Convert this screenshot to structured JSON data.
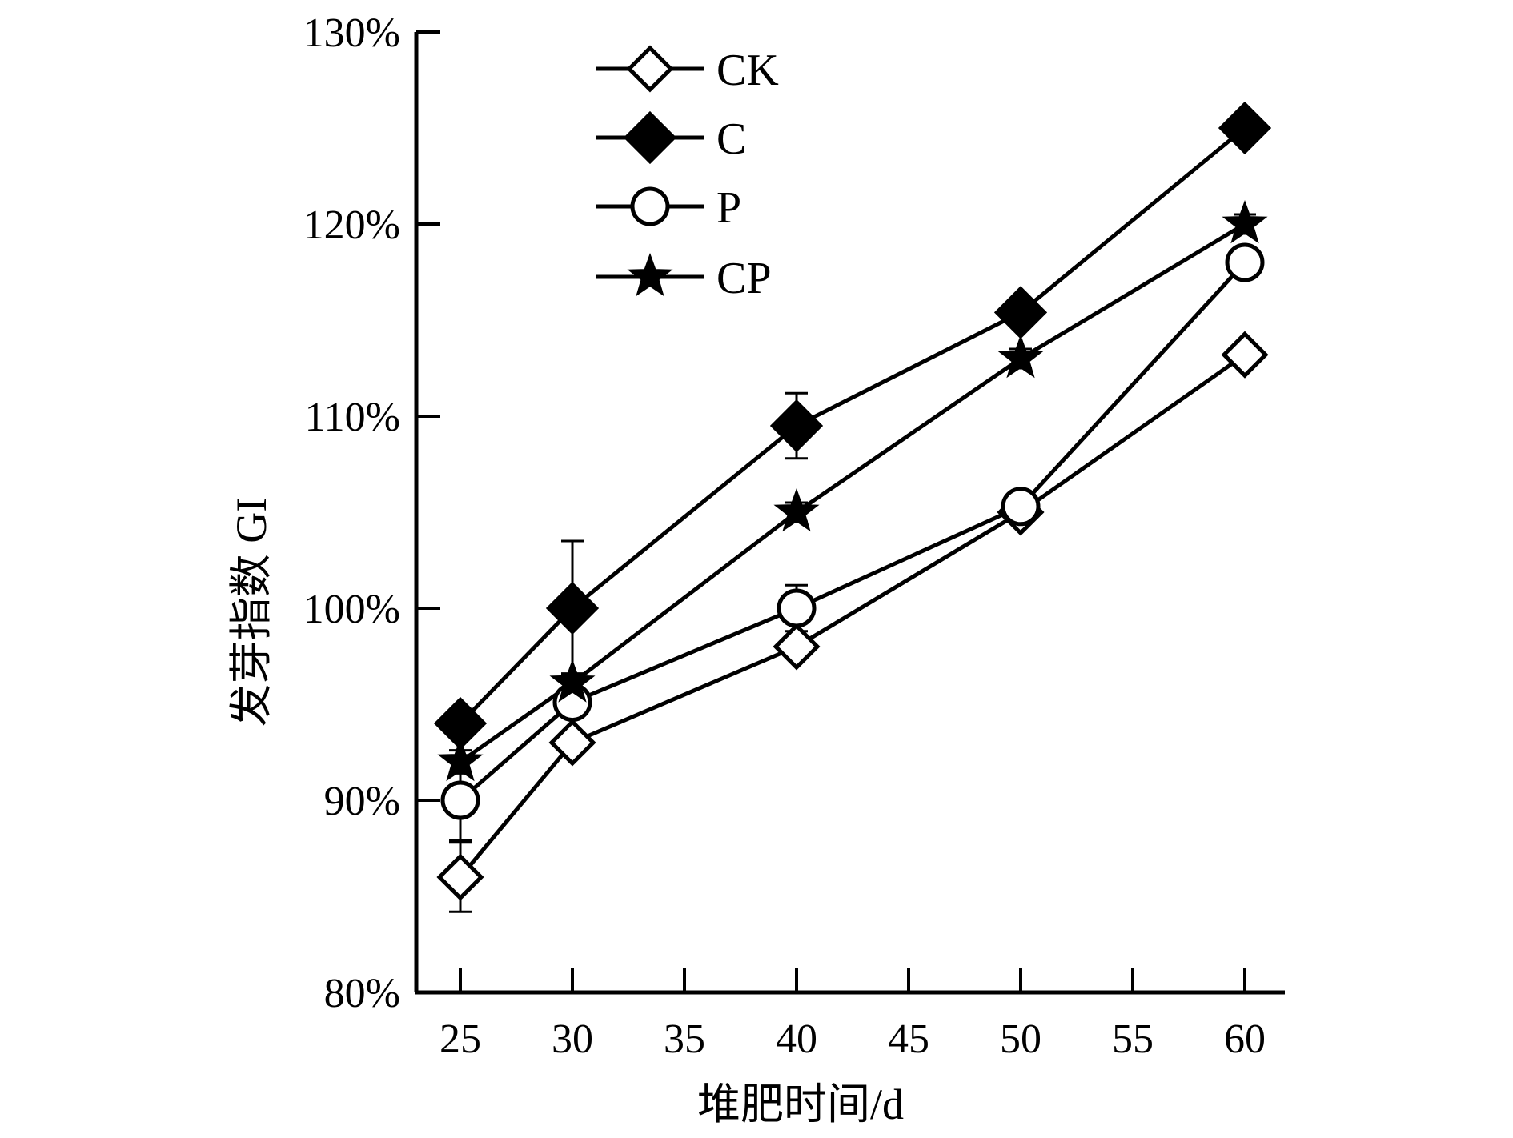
{
  "chart_data": {
    "type": "line",
    "title": "",
    "xlabel": "堆肥时间/d",
    "ylabel": "发芽指数 GI",
    "xlim": [
      23,
      62
    ],
    "ylim": [
      80,
      130
    ],
    "x_ticks": [
      25,
      30,
      35,
      40,
      45,
      50,
      55,
      60
    ],
    "x_tick_labels": [
      "25",
      "30",
      "35",
      "40",
      "45",
      "50",
      "55",
      "60"
    ],
    "y_ticks": [
      80,
      90,
      100,
      110,
      120,
      130
    ],
    "y_tick_labels": [
      "80%",
      "90%",
      "100%",
      "110%",
      "120%",
      "130%"
    ],
    "legend_position": "top-left",
    "x": [
      25,
      30,
      40,
      50,
      60
    ],
    "series": [
      {
        "name": "CK",
        "marker": "diamond-open",
        "values": [
          86.0,
          93.0,
          98.0,
          105.0,
          113.2
        ],
        "errors": [
          1.8,
          0.5,
          0.5,
          0.3,
          0.4
        ]
      },
      {
        "name": "C",
        "marker": "diamond-filled",
        "values": [
          94.0,
          100.0,
          109.5,
          115.4,
          125.0
        ],
        "errors": [
          0.7,
          3.5,
          1.7,
          0.3,
          0.3
        ]
      },
      {
        "name": "P",
        "marker": "circle-open",
        "values": [
          90.0,
          95.1,
          100.0,
          105.3,
          118.0
        ],
        "errors": [
          2.1,
          0.5,
          1.2,
          0.3,
          0.5
        ]
      },
      {
        "name": "CP",
        "marker": "star-filled",
        "values": [
          92.0,
          96.1,
          105.0,
          113.0,
          120.0
        ],
        "errors": [
          0.6,
          0.5,
          0.5,
          0.5,
          0.5
        ]
      }
    ]
  }
}
